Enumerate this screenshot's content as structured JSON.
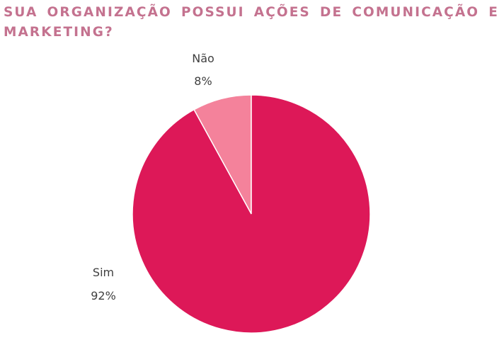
{
  "title": "SUA ORGANIZAÇÃO POSSUI AÇÕES DE COMUNICAÇÃO E MARKETING?",
  "chart_data": {
    "type": "pie",
    "title": "SUA ORGANIZAÇÃO POSSUI AÇÕES DE COMUNICAÇÃO E MARKETING?",
    "slices": [
      {
        "label": "Não",
        "value": 8,
        "display": "8%",
        "color": "#f4829b"
      },
      {
        "label": "Sim",
        "value": 92,
        "display": "92%",
        "color": "#dd1858"
      }
    ],
    "start": "12 o'clock",
    "direction": "counterclockwise",
    "labels_outside": true
  }
}
